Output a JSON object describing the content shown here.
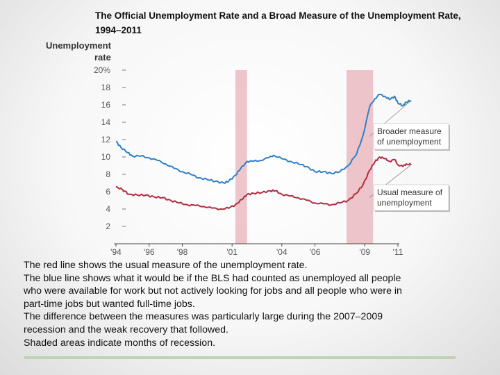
{
  "chart_data": {
    "type": "line",
    "title_lines": [
      "The Official Unemployment Rate and a Broad Measure of the Unemployment Rate,",
      "1994–2011"
    ],
    "ylabel_lines": [
      "Unemployment",
      "rate"
    ],
    "ylim": [
      0,
      20
    ],
    "yticks": [
      {
        "v": 20,
        "label": "20%"
      },
      {
        "v": 18,
        "label": "18"
      },
      {
        "v": 16,
        "label": "16"
      },
      {
        "v": 14,
        "label": "14"
      },
      {
        "v": 12,
        "label": "12"
      },
      {
        "v": 10,
        "label": "10"
      },
      {
        "v": 8,
        "label": "8"
      },
      {
        "v": 6,
        "label": "6"
      },
      {
        "v": 4,
        "label": "4"
      },
      {
        "v": 2,
        "label": "2"
      }
    ],
    "xlim": [
      1994,
      2011
    ],
    "xticks": [
      {
        "v": 1994,
        "label": "'94"
      },
      {
        "v": 1996,
        "label": "'96"
      },
      {
        "v": 1998,
        "label": "'98"
      },
      {
        "v": 2001,
        "label": "'01"
      },
      {
        "v": 2004,
        "label": "'04"
      },
      {
        "v": 2006,
        "label": "'06"
      },
      {
        "v": 2009,
        "label": "'09"
      },
      {
        "v": 2011,
        "label": "'11"
      }
    ],
    "recessions": [
      [
        2001.2,
        2001.9
      ],
      [
        2007.9,
        2009.5
      ]
    ],
    "series": [
      {
        "name": "Broader measure of unemployment",
        "color": "#2f7fc7",
        "points": [
          [
            1994.0,
            11.8
          ],
          [
            1994.3,
            11.1
          ],
          [
            1994.7,
            10.5
          ],
          [
            1995.0,
            10.1
          ],
          [
            1995.5,
            10.1
          ],
          [
            1996.0,
            9.9
          ],
          [
            1996.5,
            9.6
          ],
          [
            1997.0,
            9.2
          ],
          [
            1997.5,
            8.7
          ],
          [
            1998.0,
            8.3
          ],
          [
            1998.5,
            8.0
          ],
          [
            1999.0,
            7.6
          ],
          [
            1999.5,
            7.4
          ],
          [
            2000.0,
            7.2
          ],
          [
            2000.5,
            7.0
          ],
          [
            2000.8,
            7.2
          ],
          [
            2001.2,
            7.9
          ],
          [
            2001.5,
            8.6
          ],
          [
            2001.9,
            9.5
          ],
          [
            2002.3,
            9.5
          ],
          [
            2002.7,
            9.6
          ],
          [
            2003.2,
            9.9
          ],
          [
            2003.5,
            10.2
          ],
          [
            2004.0,
            9.8
          ],
          [
            2004.5,
            9.5
          ],
          [
            2005.0,
            9.2
          ],
          [
            2005.5,
            8.9
          ],
          [
            2006.0,
            8.3
          ],
          [
            2006.5,
            8.3
          ],
          [
            2007.0,
            8.1
          ],
          [
            2007.5,
            8.3
          ],
          [
            2008.0,
            9.0
          ],
          [
            2008.5,
            10.3
          ],
          [
            2008.9,
            12.5
          ],
          [
            2009.3,
            15.8
          ],
          [
            2009.6,
            16.7
          ],
          [
            2009.9,
            17.2
          ],
          [
            2010.2,
            17.0
          ],
          [
            2010.5,
            16.6
          ],
          [
            2010.8,
            17.0
          ],
          [
            2011.0,
            16.2
          ],
          [
            2011.3,
            15.9
          ],
          [
            2011.5,
            16.3
          ],
          [
            2011.8,
            16.5
          ]
        ]
      },
      {
        "name": "Usual measure of unemployment",
        "color": "#b02a3e",
        "points": [
          [
            1994.0,
            6.6
          ],
          [
            1994.4,
            6.2
          ],
          [
            1994.8,
            5.7
          ],
          [
            1995.3,
            5.6
          ],
          [
            1995.8,
            5.6
          ],
          [
            1996.3,
            5.4
          ],
          [
            1996.8,
            5.3
          ],
          [
            1997.3,
            5.0
          ],
          [
            1997.8,
            4.7
          ],
          [
            1998.3,
            4.5
          ],
          [
            1998.8,
            4.4
          ],
          [
            1999.3,
            4.3
          ],
          [
            1999.8,
            4.1
          ],
          [
            2000.3,
            4.0
          ],
          [
            2000.8,
            4.1
          ],
          [
            2001.2,
            4.5
          ],
          [
            2001.6,
            5.1
          ],
          [
            2001.9,
            5.7
          ],
          [
            2002.3,
            5.8
          ],
          [
            2002.8,
            5.9
          ],
          [
            2003.3,
            6.1
          ],
          [
            2003.6,
            6.1
          ],
          [
            2004.0,
            5.7
          ],
          [
            2004.5,
            5.5
          ],
          [
            2005.0,
            5.3
          ],
          [
            2005.5,
            5.0
          ],
          [
            2006.0,
            4.7
          ],
          [
            2006.5,
            4.6
          ],
          [
            2007.0,
            4.5
          ],
          [
            2007.5,
            4.7
          ],
          [
            2008.0,
            5.0
          ],
          [
            2008.5,
            5.8
          ],
          [
            2008.9,
            6.8
          ],
          [
            2009.3,
            8.5
          ],
          [
            2009.6,
            9.4
          ],
          [
            2009.9,
            10.0
          ],
          [
            2010.2,
            9.8
          ],
          [
            2010.5,
            9.5
          ],
          [
            2010.8,
            9.7
          ],
          [
            2011.0,
            9.1
          ],
          [
            2011.3,
            8.9
          ],
          [
            2011.5,
            9.2
          ],
          [
            2011.8,
            9.1
          ]
        ]
      }
    ],
    "annotations": [
      {
        "lines": [
          "Broader measure",
          "of unemployment"
        ],
        "series_index": 0
      },
      {
        "lines": [
          "Usual measure of",
          "unemployment"
        ],
        "series_index": 1
      }
    ]
  },
  "caption": {
    "lines": [
      "The red line shows the usual measure of the unemployment rate.",
      "The blue line shows what it would be if the BLS had counted as unemployed all people",
      "who were available for work but not actively looking for jobs and all people who were in",
      "part-time jobs but wanted full-time jobs.",
      "The difference between the measures was particularly large during the 2007–2009",
      "recession and the weak recovery that followed.",
      "Shaded areas indicate months of recession."
    ]
  }
}
